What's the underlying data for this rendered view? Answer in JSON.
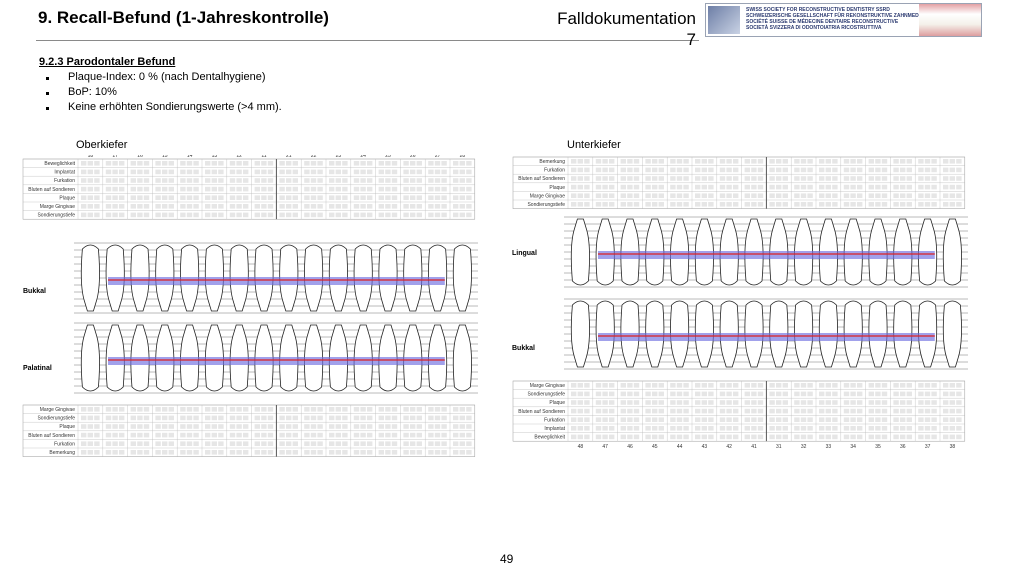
{
  "header": {
    "title": "9. Recall-Befund (1-Jahreskontrolle)",
    "falldok_line1": "Falldokumentation",
    "falldok_line2": "7",
    "logo_lines": [
      "SWISS SOCIETY FOR RECONSTRUCTIVE DENTISTRY SSRD",
      "SCHWEIZERISCHE GESELLSCHAFT FÜR REKONSTRUKTIVE ZAHNMEDIZIN",
      "SOCIÉTÉ SUISSE DE MÉDECINE DENTAIRE RECONSTRUCTIVE",
      "SOCIETÀ SVIZZERA DI ODONTOIATRIA RICOSTRUTTIVA"
    ]
  },
  "section": {
    "subtitle": "9.2.3 Parodontaler Befund",
    "bullets": [
      "Plaque-Index: 0 % (nach Dentalhygiene)",
      "BoP: 10%",
      "Keine erhöhten Sondierungswerte (>4 mm)."
    ]
  },
  "upper": {
    "label": "Oberkiefer",
    "teeth": [
      "18",
      "17",
      "16",
      "15",
      "14",
      "13",
      "12",
      "11",
      "21",
      "22",
      "23",
      "24",
      "25",
      "26",
      "27",
      "28"
    ],
    "rows_top": [
      "Beweglichkeit",
      "Implantat",
      "Furkation",
      "Bluten auf Sondieren",
      "Plaque",
      "Marge Gingivae",
      "Sondierungstiefe"
    ],
    "rows_bottom": [
      "Marge Gingivae",
      "Sondierungstiefe",
      "Plaque",
      "Bluten auf Sondieren",
      "Furkation",
      "Bemerkung"
    ],
    "side_top": "Bukkal",
    "side_bottom": "Palatinal"
  },
  "lower": {
    "label": "Unterkiefer",
    "teeth": [
      "48",
      "47",
      "46",
      "45",
      "44",
      "43",
      "42",
      "41",
      "31",
      "32",
      "33",
      "34",
      "35",
      "36",
      "37",
      "38"
    ],
    "rows_top": [
      "Bemerkung",
      "Furkation",
      "Bluten auf Sondieren",
      "Plaque",
      "Marge Gingivae",
      "Sondierungstiefe"
    ],
    "rows_bottom": [
      "Marge Gingivae",
      "Sondierungstiefe",
      "Plaque",
      "Bluten auf Sondieren",
      "Furkation",
      "Implantat",
      "Beweglichkeit"
    ],
    "side_top": "Lingual",
    "side_bottom": "Bukkal"
  },
  "page_number": "49"
}
